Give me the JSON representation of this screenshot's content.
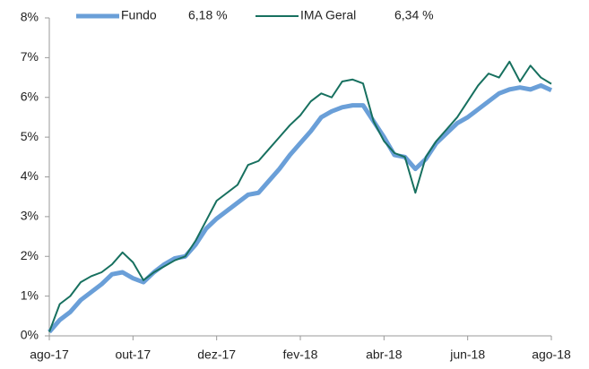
{
  "chart_data": {
    "type": "line",
    "x": [
      0,
      0.25,
      0.5,
      0.75,
      1,
      1.25,
      1.5,
      1.75,
      2,
      2.25,
      2.5,
      2.75,
      3,
      3.25,
      3.5,
      3.75,
      4,
      4.25,
      4.5,
      4.75,
      5,
      5.25,
      5.5,
      5.75,
      6,
      6.25,
      6.5,
      6.75,
      7,
      7.25,
      7.5,
      7.75,
      8,
      8.25,
      8.5,
      8.75,
      9,
      9.25,
      9.5,
      9.75,
      10,
      10.25,
      10.5,
      10.75,
      11,
      11.25,
      11.5,
      11.75,
      12
    ],
    "series": [
      {
        "name": "Fundo",
        "value_label": "6,18 %",
        "color": "#6a9fd8",
        "width": 5,
        "values": [
          0.1,
          0.4,
          0.6,
          0.9,
          1.1,
          1.3,
          1.55,
          1.6,
          1.45,
          1.35,
          1.6,
          1.8,
          1.95,
          2.0,
          2.3,
          2.7,
          2.95,
          3.15,
          3.35,
          3.55,
          3.6,
          3.9,
          4.2,
          4.55,
          4.85,
          5.15,
          5.5,
          5.65,
          5.75,
          5.8,
          5.8,
          5.4,
          5.0,
          4.55,
          4.5,
          4.2,
          4.45,
          4.85,
          5.1,
          5.35,
          5.5,
          5.7,
          5.9,
          6.1,
          6.2,
          6.25,
          6.2,
          6.3,
          6.18
        ]
      },
      {
        "name": "IMA Geral",
        "value_label": "6,34 %",
        "color": "#17705f",
        "width": 2,
        "values": [
          0.1,
          0.8,
          1.0,
          1.35,
          1.5,
          1.6,
          1.8,
          2.1,
          1.85,
          1.4,
          1.6,
          1.75,
          1.9,
          2.0,
          2.4,
          2.9,
          3.4,
          3.6,
          3.8,
          4.3,
          4.4,
          4.7,
          5.0,
          5.3,
          5.55,
          5.9,
          6.1,
          6.0,
          6.4,
          6.45,
          6.35,
          5.4,
          4.9,
          4.6,
          4.5,
          3.6,
          4.5,
          4.9,
          5.2,
          5.5,
          5.9,
          6.3,
          6.6,
          6.5,
          6.9,
          6.4,
          6.8,
          6.5,
          6.34
        ]
      }
    ],
    "xlim": [
      0,
      12
    ],
    "xticks": [
      {
        "value": 0,
        "label": "ago-17"
      },
      {
        "value": 2,
        "label": "out-17"
      },
      {
        "value": 4,
        "label": "dez-17"
      },
      {
        "value": 6,
        "label": "fev-18"
      },
      {
        "value": 8,
        "label": "abr-18"
      },
      {
        "value": 10,
        "label": "jun-18"
      },
      {
        "value": 12,
        "label": "ago-18"
      }
    ],
    "ylim": [
      0,
      8
    ],
    "yticks": [
      {
        "value": 0,
        "label": "0%"
      },
      {
        "value": 1,
        "label": "1%"
      },
      {
        "value": 2,
        "label": "2%"
      },
      {
        "value": 3,
        "label": "3%"
      },
      {
        "value": 4,
        "label": "4%"
      },
      {
        "value": 5,
        "label": "5%"
      },
      {
        "value": 6,
        "label": "6%"
      },
      {
        "value": 7,
        "label": "7%"
      },
      {
        "value": 8,
        "label": "8%"
      }
    ],
    "legend": "top"
  }
}
